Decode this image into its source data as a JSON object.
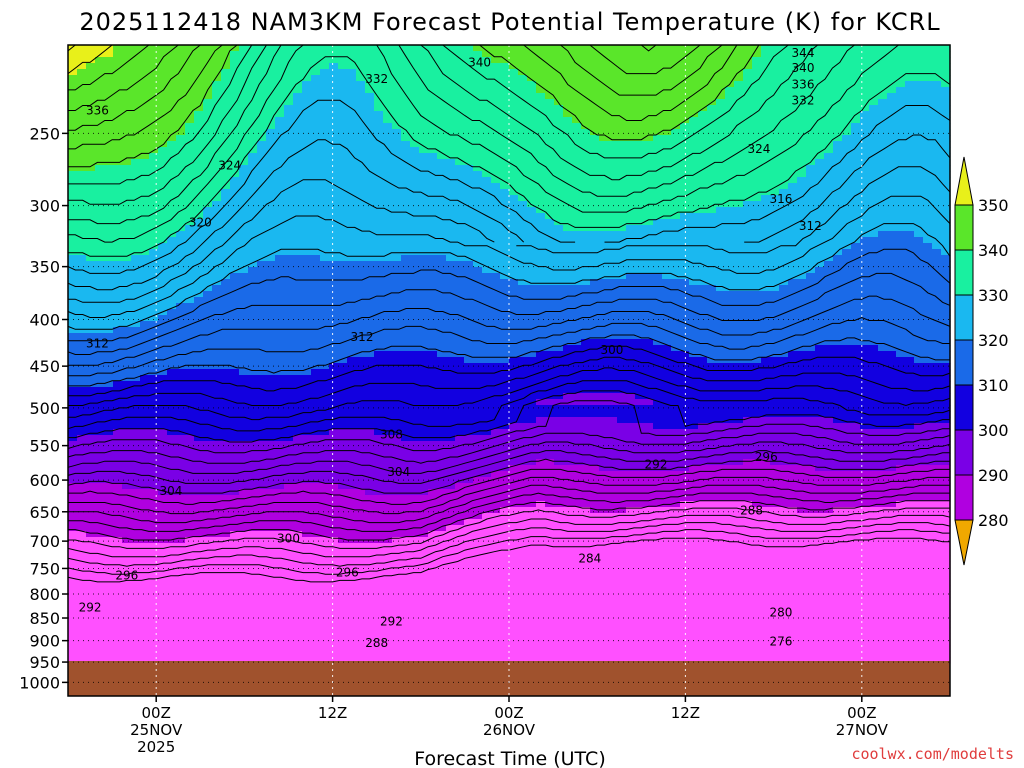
{
  "chart_data": {
    "type": "heatmap",
    "title": "2025112418 NAM3KM Forecast Potential Temperature (K) for KCRL",
    "xlabel": "Forecast Time (UTC)",
    "ylabel": "",
    "credit": "coolwx.com/modelts",
    "x_ticks": [
      {
        "hour": 6,
        "lines": [
          "00Z",
          "25NOV",
          "2025"
        ]
      },
      {
        "hour": 18,
        "lines": [
          "12Z"
        ]
      },
      {
        "hour": 30,
        "lines": [
          "00Z",
          "26NOV"
        ]
      },
      {
        "hour": 42,
        "lines": [
          "12Z"
        ]
      },
      {
        "hour": 54,
        "lines": [
          "00Z",
          "27NOV"
        ]
      }
    ],
    "xlim_hours": [
      0,
      60
    ],
    "y_ticks_hpa": [
      250,
      300,
      350,
      400,
      450,
      500,
      550,
      600,
      650,
      700,
      750,
      800,
      850,
      900,
      950,
      1000
    ],
    "ylim_hpa": [
      200,
      1035
    ],
    "y_scale": "log-pressure",
    "ground_level_hpa": 975,
    "colorbar": {
      "levels": [
        280,
        290,
        300,
        310,
        320,
        330,
        340,
        350
      ],
      "colors": [
        "#b000e0",
        "#7a00e6",
        "#1200e0",
        "#1a6ae8",
        "#1ab8f0",
        "#19f0a0",
        "#5ae62a",
        "#e8f01a",
        "#f0a800",
        "#ff50ff"
      ],
      "extend": "both"
    },
    "contour_interval_k": 2,
    "contour_labels": [
      {
        "hour": 2,
        "hpa": 236,
        "value": "336"
      },
      {
        "hour": 11,
        "hpa": 271,
        "value": "324"
      },
      {
        "hour": 9,
        "hpa": 313,
        "value": "320"
      },
      {
        "hour": 21,
        "hpa": 218,
        "value": "332"
      },
      {
        "hour": 28,
        "hpa": 209,
        "value": "340"
      },
      {
        "hour": 50,
        "hpa": 204,
        "value": "344"
      },
      {
        "hour": 50,
        "hpa": 212,
        "value": "340"
      },
      {
        "hour": 50,
        "hpa": 221,
        "value": "336"
      },
      {
        "hour": 50,
        "hpa": 230,
        "value": "332"
      },
      {
        "hour": 47,
        "hpa": 260,
        "value": "324"
      },
      {
        "hour": 48.5,
        "hpa": 295,
        "value": "316"
      },
      {
        "hour": 50.5,
        "hpa": 316,
        "value": "312"
      },
      {
        "hour": 2,
        "hpa": 425,
        "value": "312"
      },
      {
        "hour": 20,
        "hpa": 418,
        "value": "312"
      },
      {
        "hour": 37,
        "hpa": 432,
        "value": "300"
      },
      {
        "hour": 22,
        "hpa": 535,
        "value": "308"
      },
      {
        "hour": 22.5,
        "hpa": 588,
        "value": "304"
      },
      {
        "hour": 7,
        "hpa": 617,
        "value": "304"
      },
      {
        "hour": 15,
        "hpa": 695,
        "value": "300"
      },
      {
        "hour": 4,
        "hpa": 763,
        "value": "296"
      },
      {
        "hour": 19,
        "hpa": 758,
        "value": "296"
      },
      {
        "hour": 40,
        "hpa": 577,
        "value": "292"
      },
      {
        "hour": 47.5,
        "hpa": 566,
        "value": "296"
      },
      {
        "hour": 46.5,
        "hpa": 648,
        "value": "288"
      },
      {
        "hour": 1.5,
        "hpa": 828,
        "value": "292"
      },
      {
        "hour": 22,
        "hpa": 857,
        "value": "292"
      },
      {
        "hour": 21,
        "hpa": 905,
        "value": "288"
      },
      {
        "hour": 35.5,
        "hpa": 731,
        "value": "284"
      },
      {
        "hour": 48.5,
        "hpa": 838,
        "value": "280"
      },
      {
        "hour": 48.5,
        "hpa": 902,
        "value": "276"
      }
    ]
  }
}
